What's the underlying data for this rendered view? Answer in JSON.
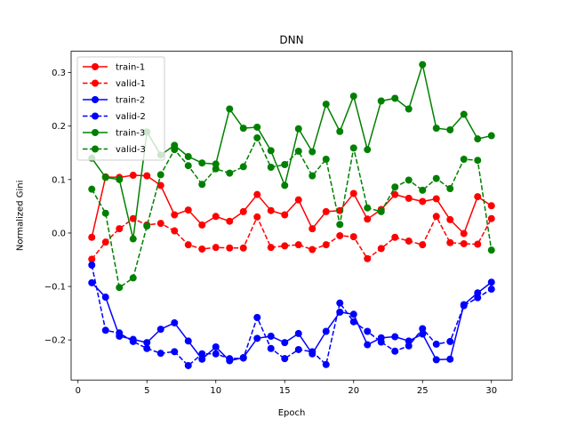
{
  "chart_data": {
    "type": "line",
    "title": "DNN",
    "xlabel": "Epoch",
    "ylabel": "Normalized Gini",
    "xlim": [
      -0.5,
      31.5
    ],
    "ylim": [
      -0.275,
      0.34
    ],
    "xticks": [
      0,
      5,
      10,
      15,
      20,
      25,
      30
    ],
    "yticks": [
      -0.2,
      -0.1,
      0.0,
      0.1,
      0.2,
      0.3
    ],
    "ytick_labels": [
      "−0.2",
      "−0.1",
      "0.0",
      "0.1",
      "0.2",
      "0.3"
    ],
    "grid": false,
    "legend_position": "upper-left",
    "x": [
      1,
      2,
      3,
      4,
      5,
      6,
      7,
      8,
      9,
      10,
      11,
      12,
      13,
      14,
      15,
      16,
      17,
      18,
      19,
      20,
      21,
      22,
      23,
      24,
      25,
      26,
      27,
      28,
      29,
      30
    ],
    "series": [
      {
        "name": "train-1",
        "color": "#ff0000",
        "dashed": false,
        "values": [
          -0.008,
          0.105,
          0.104,
          0.108,
          0.107,
          0.089,
          0.034,
          0.043,
          0.015,
          0.031,
          0.022,
          0.04,
          0.072,
          0.042,
          0.034,
          0.062,
          0.008,
          0.04,
          0.042,
          0.074,
          0.026,
          0.044,
          0.072,
          0.065,
          0.059,
          0.064,
          0.025,
          -0.001,
          0.068,
          0.051
        ]
      },
      {
        "name": "valid-1",
        "color": "#ff0000",
        "dashed": true,
        "values": [
          -0.049,
          -0.017,
          0.008,
          0.027,
          0.015,
          0.018,
          0.004,
          -0.022,
          -0.03,
          -0.027,
          -0.028,
          -0.028,
          0.03,
          -0.027,
          -0.024,
          -0.022,
          -0.031,
          -0.022,
          -0.005,
          -0.007,
          -0.048,
          -0.029,
          -0.008,
          -0.015,
          -0.022,
          0.031,
          -0.018,
          -0.02,
          -0.021,
          0.027
        ]
      },
      {
        "name": "train-2",
        "color": "#0000ff",
        "dashed": false,
        "values": [
          -0.093,
          -0.12,
          -0.193,
          -0.199,
          -0.205,
          -0.18,
          -0.168,
          -0.202,
          -0.236,
          -0.213,
          -0.239,
          -0.233,
          -0.197,
          -0.193,
          -0.205,
          -0.188,
          -0.226,
          -0.184,
          -0.148,
          -0.152,
          -0.209,
          -0.196,
          -0.194,
          -0.202,
          -0.189,
          -0.237,
          -0.236,
          -0.134,
          -0.112,
          -0.092
        ]
      },
      {
        "name": "valid-2",
        "color": "#0000ff",
        "dashed": true,
        "values": [
          -0.06,
          -0.182,
          -0.187,
          -0.203,
          -0.216,
          -0.225,
          -0.222,
          -0.248,
          -0.226,
          -0.226,
          -0.235,
          -0.234,
          -0.158,
          -0.216,
          -0.235,
          -0.218,
          -0.222,
          -0.246,
          -0.131,
          -0.166,
          -0.184,
          -0.204,
          -0.221,
          -0.211,
          -0.179,
          -0.208,
          -0.203,
          -0.136,
          -0.121,
          -0.105
        ]
      },
      {
        "name": "train-3",
        "color": "#008000",
        "dashed": false,
        "values": [
          0.14,
          0.104,
          0.1,
          -0.011,
          0.189,
          0.146,
          0.164,
          0.143,
          0.131,
          0.129,
          0.232,
          0.196,
          0.198,
          0.154,
          0.089,
          0.195,
          0.152,
          0.241,
          0.19,
          0.256,
          0.156,
          0.247,
          0.252,
          0.232,
          0.315,
          0.196,
          0.193,
          0.222,
          0.176,
          0.182
        ]
      },
      {
        "name": "valid-3",
        "color": "#008000",
        "dashed": true,
        "values": [
          0.082,
          0.037,
          -0.102,
          -0.084,
          0.013,
          0.109,
          0.156,
          0.126,
          0.091,
          0.12,
          0.112,
          0.124,
          0.178,
          0.123,
          0.128,
          0.153,
          0.107,
          0.138,
          0.016,
          0.159,
          0.047,
          0.04,
          0.086,
          0.099,
          0.08,
          0.102,
          0.083,
          0.138,
          0.136,
          -0.032
        ]
      }
    ]
  }
}
